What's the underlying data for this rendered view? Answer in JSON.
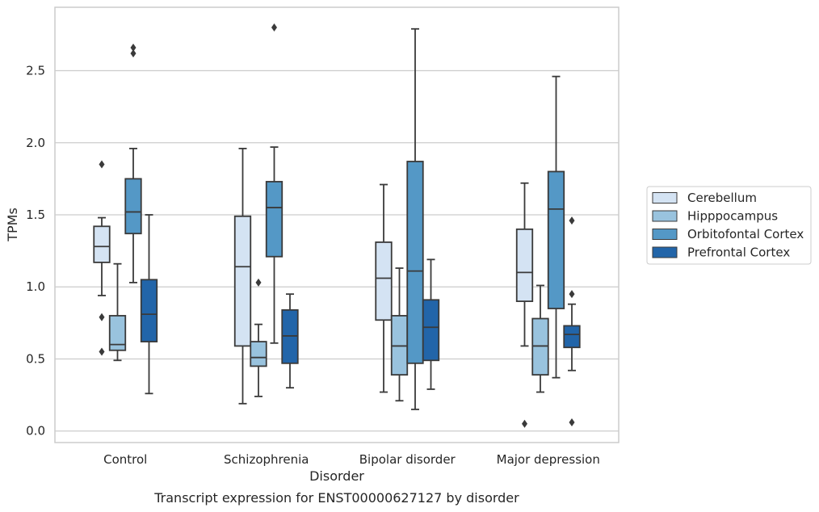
{
  "caption": "Transcript expression for ENST00000627127 by disorder",
  "chart_data": {
    "type": "box",
    "xlabel": "Disorder",
    "ylabel": "TPMs",
    "ylim": [
      -0.08,
      2.94
    ],
    "yticks": [
      "0.0",
      "0.5",
      "1.0",
      "1.5",
      "2.0",
      "2.5"
    ],
    "grid": "horizontal",
    "legend_position": "right",
    "categories": [
      "Control",
      "Schizophrenia",
      "Bipolar disorder",
      "Major depression"
    ],
    "series": [
      {
        "name": "Cerebellum",
        "color": "#d4e3f3",
        "boxes": [
          {
            "whislo": 0.94,
            "q1": 1.17,
            "med": 1.28,
            "q3": 1.42,
            "whishi": 1.48,
            "fliers": [
              1.85,
              0.79,
              0.55
            ]
          },
          {
            "whislo": 0.19,
            "q1": 0.59,
            "med": 1.14,
            "q3": 1.49,
            "whishi": 1.96,
            "fliers": []
          },
          {
            "whislo": 0.27,
            "q1": 0.77,
            "med": 1.06,
            "q3": 1.31,
            "whishi": 1.71,
            "fliers": []
          },
          {
            "whislo": 0.59,
            "q1": 0.9,
            "med": 1.1,
            "q3": 1.4,
            "whishi": 1.72,
            "fliers": [
              0.05
            ]
          }
        ]
      },
      {
        "name": "Hipppocampus",
        "color": "#99c3de",
        "boxes": [
          {
            "whislo": 0.49,
            "q1": 0.56,
            "med": 0.6,
            "q3": 0.8,
            "whishi": 1.16,
            "fliers": []
          },
          {
            "whislo": 0.24,
            "q1": 0.45,
            "med": 0.51,
            "q3": 0.62,
            "whishi": 0.74,
            "fliers": [
              1.03
            ]
          },
          {
            "whislo": 0.21,
            "q1": 0.39,
            "med": 0.59,
            "q3": 0.8,
            "whishi": 1.13,
            "fliers": []
          },
          {
            "whislo": 0.27,
            "q1": 0.39,
            "med": 0.59,
            "q3": 0.78,
            "whishi": 1.01,
            "fliers": []
          }
        ]
      },
      {
        "name": "Orbitofontal Cortex",
        "color": "#5498c6",
        "boxes": [
          {
            "whislo": 1.03,
            "q1": 1.37,
            "med": 1.52,
            "q3": 1.75,
            "whishi": 1.96,
            "fliers": [
              2.66,
              2.62
            ]
          },
          {
            "whislo": 0.61,
            "q1": 1.21,
            "med": 1.55,
            "q3": 1.73,
            "whishi": 1.97,
            "fliers": [
              2.8
            ]
          },
          {
            "whislo": 0.15,
            "q1": 0.47,
            "med": 1.11,
            "q3": 1.87,
            "whishi": 2.79,
            "fliers": []
          },
          {
            "whislo": 0.37,
            "q1": 0.85,
            "med": 1.54,
            "q3": 1.8,
            "whishi": 2.46,
            "fliers": []
          }
        ]
      },
      {
        "name": "Prefrontal Cortex",
        "color": "#2265a9",
        "boxes": [
          {
            "whislo": 0.26,
            "q1": 0.62,
            "med": 0.81,
            "q3": 1.05,
            "whishi": 1.5,
            "fliers": []
          },
          {
            "whislo": 0.3,
            "q1": 0.47,
            "med": 0.66,
            "q3": 0.84,
            "whishi": 0.95,
            "fliers": []
          },
          {
            "whislo": 0.29,
            "q1": 0.49,
            "med": 0.72,
            "q3": 0.91,
            "whishi": 1.19,
            "fliers": []
          },
          {
            "whislo": 0.42,
            "q1": 0.58,
            "med": 0.67,
            "q3": 0.73,
            "whishi": 0.88,
            "fliers": [
              1.46,
              0.95,
              0.06
            ]
          }
        ]
      }
    ]
  }
}
